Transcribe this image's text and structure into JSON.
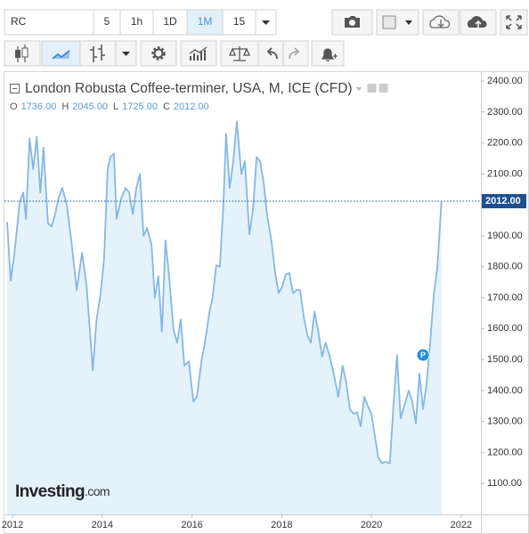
{
  "toolbar": {
    "symbol": "RC",
    "intervals": [
      "5",
      "1h",
      "1D",
      "1M",
      "15"
    ],
    "active_interval_index": 3
  },
  "chart_data": {
    "type": "line",
    "title": "London Robusta Coffee-terminer, USA, M, ICE (CFD)",
    "ohlc": [
      {
        "key": "O",
        "value": "1736.00"
      },
      {
        "key": "H",
        "value": "2045.00"
      },
      {
        "key": "L",
        "value": "1725.00"
      },
      {
        "key": "C",
        "value": "2012.00"
      }
    ],
    "x": [
      2011.88,
      2011.96,
      2012.04,
      2012.16,
      2012.24,
      2012.3,
      2012.38,
      2012.46,
      2012.54,
      2012.62,
      2012.69,
      2012.79,
      2012.87,
      2012.95,
      2013.03,
      2013.11,
      2013.21,
      2013.31,
      2013.43,
      2013.55,
      2013.65,
      2013.79,
      2013.87,
      2013.96,
      2014.04,
      2014.12,
      2014.18,
      2014.26,
      2014.32,
      2014.42,
      2014.52,
      2014.6,
      2014.68,
      2014.76,
      2014.84,
      2014.92,
      2015.0,
      2015.1,
      2015.17,
      2015.25,
      2015.33,
      2015.41,
      2015.49,
      2015.59,
      2015.67,
      2015.75,
      2015.83,
      2015.93,
      2016.03,
      2016.11,
      2016.21,
      2016.29,
      2016.39,
      2016.46,
      2016.54,
      2016.62,
      2016.7,
      2016.76,
      2016.84,
      2016.92,
      2017.0,
      2017.1,
      2017.18,
      2017.28,
      2017.36,
      2017.44,
      2017.52,
      2017.6,
      2017.67,
      2017.77,
      2017.85,
      2017.93,
      2018.01,
      2018.09,
      2018.17,
      2018.25,
      2018.33,
      2018.41,
      2018.49,
      2018.57,
      2018.65,
      2018.73,
      2018.81,
      2018.9,
      2018.98,
      2019.06,
      2019.16,
      2019.26,
      2019.36,
      2019.44,
      2019.52,
      2019.6,
      2019.68,
      2019.76,
      2019.84,
      2019.92,
      2020.0,
      2020.08,
      2020.15,
      2020.23,
      2020.31,
      2020.41,
      2020.49,
      2020.57,
      2020.65,
      2020.73,
      2020.83,
      2020.91,
      2020.99,
      2021.07,
      2021.15,
      2021.23,
      2021.31,
      2021.39,
      2021.47,
      2021.56
    ],
    "values": [
      1945,
      1755,
      1840,
      2010,
      2040,
      1955,
      2215,
      2115,
      2220,
      2040,
      2185,
      1940,
      1930,
      1970,
      2025,
      2055,
      2000,
      1885,
      1725,
      1845,
      1740,
      1465,
      1625,
      1710,
      1825,
      2115,
      2155,
      2165,
      1955,
      2020,
      2055,
      2040,
      1970,
      2055,
      2100,
      1900,
      1925,
      1870,
      1700,
      1770,
      1590,
      1885,
      1770,
      1595,
      1555,
      1630,
      1480,
      1495,
      1365,
      1380,
      1495,
      1555,
      1655,
      1700,
      1805,
      1800,
      2000,
      2230,
      2055,
      2140,
      2270,
      2100,
      2140,
      1905,
      1985,
      2155,
      2140,
      2070,
      1970,
      1885,
      1785,
      1715,
      1735,
      1775,
      1780,
      1715,
      1725,
      1725,
      1640,
      1580,
      1555,
      1655,
      1595,
      1510,
      1555,
      1515,
      1455,
      1380,
      1480,
      1425,
      1340,
      1325,
      1330,
      1285,
      1380,
      1350,
      1325,
      1250,
      1185,
      1165,
      1170,
      1165,
      1350,
      1515,
      1310,
      1350,
      1400,
      1365,
      1295,
      1455,
      1340,
      1425,
      1555,
      1710,
      1800,
      2012
    ],
    "color": "#86b7e3",
    "fill": "#e4f2fb",
    "xlim": [
      2011.82,
      2022.44
    ],
    "xticks": [
      2012,
      2014,
      2016,
      2018,
      2020,
      2022
    ],
    "ylim": [
      1000,
      2429
    ],
    "yticks": [
      {
        "value": 1100,
        "label": "1100.00"
      },
      {
        "value": 1200,
        "label": "1200.00"
      },
      {
        "value": 1300,
        "label": "1300.00"
      },
      {
        "value": 1400,
        "label": "1400.00"
      },
      {
        "value": 1500,
        "label": "1500.00"
      },
      {
        "value": 1600,
        "label": "1600.00"
      },
      {
        "value": 1700,
        "label": "1700.00"
      },
      {
        "value": 1800,
        "label": "1800.00"
      },
      {
        "value": 1900,
        "label": "1900.00"
      },
      {
        "value": 2000,
        "label": "2000.00"
      },
      {
        "value": 2100,
        "label": "2100.00"
      },
      {
        "value": 2200,
        "label": "2200.00"
      },
      {
        "value": 2300,
        "label": "2300.00"
      },
      {
        "value": 2400,
        "label": "2400.00"
      }
    ],
    "grid": false,
    "last_price": {
      "value": 2012,
      "label": "2012.00",
      "color": "#1d4f91"
    },
    "marker": {
      "label": "P",
      "x": 2021.15,
      "y": 1515,
      "color": "#1c8fe0"
    },
    "watermark": {
      "brand": "Investing",
      "suffix": ".com"
    }
  }
}
